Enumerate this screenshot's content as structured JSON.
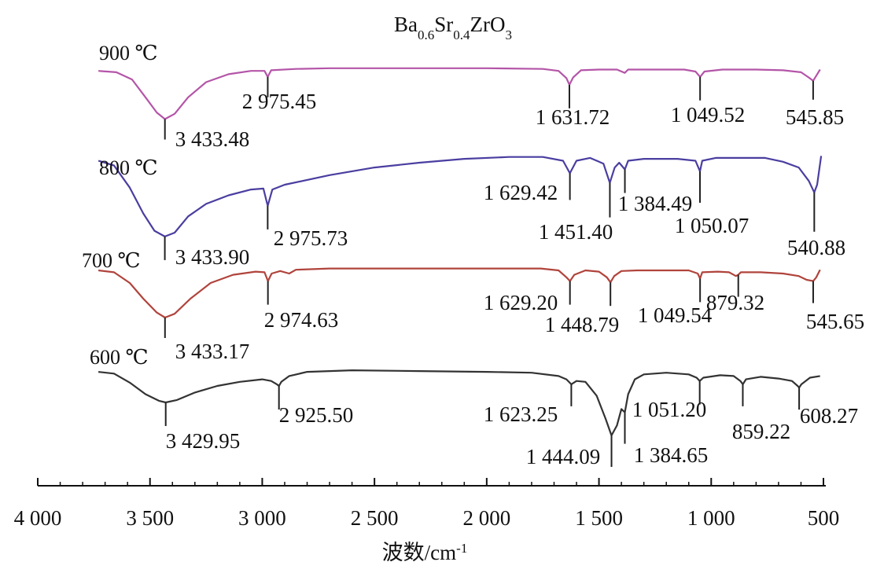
{
  "chart_data": {
    "type": "line",
    "title_base": "Ba",
    "title_parts": [
      {
        "text": "Ba",
        "sub": false
      },
      {
        "text": "0.6",
        "sub": true
      },
      {
        "text": "Sr",
        "sub": false
      },
      {
        "text": "0.4",
        "sub": true
      },
      {
        "text": "ZrO",
        "sub": false
      },
      {
        "text": "3",
        "sub": true
      }
    ],
    "xlabel": "波数/cm",
    "xlabel_sup": "-1",
    "x_reversed": true,
    "xlim": [
      4000,
      500
    ],
    "x_ticks": [
      4000,
      3500,
      3000,
      2500,
      2000,
      1500,
      1000,
      500
    ],
    "x_tick_labels": [
      "4 000",
      "3 500",
      "3 000",
      "2 500",
      "2 000",
      "1 500",
      "1 000",
      "500"
    ],
    "series": [
      {
        "name": "900 ℃",
        "color": "#b455a8",
        "points": [
          [
            3730,
            0.95
          ],
          [
            3650,
            0.93
          ],
          [
            3580,
            0.82
          ],
          [
            3520,
            0.55
          ],
          [
            3470,
            0.32
          ],
          [
            3433.48,
            0.22
          ],
          [
            3390,
            0.3
          ],
          [
            3330,
            0.55
          ],
          [
            3250,
            0.78
          ],
          [
            3150,
            0.9
          ],
          [
            3050,
            0.95
          ],
          [
            2990,
            0.95
          ],
          [
            2975.45,
            0.86
          ],
          [
            2960,
            0.96
          ],
          [
            2850,
            0.98
          ],
          [
            2700,
            0.99
          ],
          [
            2400,
            0.99
          ],
          [
            2000,
            0.99
          ],
          [
            1750,
            0.98
          ],
          [
            1680,
            0.95
          ],
          [
            1645,
            0.84
          ],
          [
            1631.72,
            0.74
          ],
          [
            1615,
            0.85
          ],
          [
            1580,
            0.96
          ],
          [
            1500,
            0.97
          ],
          [
            1420,
            0.97
          ],
          [
            1385,
            0.92
          ],
          [
            1370,
            0.97
          ],
          [
            1250,
            0.97
          ],
          [
            1120,
            0.97
          ],
          [
            1070,
            0.94
          ],
          [
            1049.52,
            0.86
          ],
          [
            1030,
            0.94
          ],
          [
            950,
            0.97
          ],
          [
            800,
            0.97
          ],
          [
            680,
            0.96
          ],
          [
            600,
            0.93
          ],
          [
            565,
            0.85
          ],
          [
            545.85,
            0.8
          ],
          [
            535,
            0.86
          ],
          [
            515,
            0.97
          ]
        ],
        "peaks": [
          {
            "x": 3433.48,
            "label": "3 433.48"
          },
          {
            "x": 2975.45,
            "label": "2 975.45"
          },
          {
            "x": 1631.72,
            "label": "1 631.72"
          },
          {
            "x": 1049.52,
            "label": "1 049.52"
          },
          {
            "x": 545.85,
            "label": "545.85"
          }
        ]
      },
      {
        "name": "800 ℃",
        "color": "#4a3ea0",
        "points": [
          [
            3730,
            0.93
          ],
          [
            3660,
            0.88
          ],
          [
            3590,
            0.65
          ],
          [
            3530,
            0.38
          ],
          [
            3480,
            0.2
          ],
          [
            3433.9,
            0.14
          ],
          [
            3390,
            0.18
          ],
          [
            3330,
            0.35
          ],
          [
            3250,
            0.48
          ],
          [
            3150,
            0.57
          ],
          [
            3050,
            0.63
          ],
          [
            2995,
            0.64
          ],
          [
            2975.73,
            0.46
          ],
          [
            2955,
            0.63
          ],
          [
            2900,
            0.68
          ],
          [
            2700,
            0.78
          ],
          [
            2500,
            0.86
          ],
          [
            2300,
            0.91
          ],
          [
            2100,
            0.95
          ],
          [
            1900,
            0.97
          ],
          [
            1750,
            0.97
          ],
          [
            1660,
            0.93
          ],
          [
            1629.42,
            0.8
          ],
          [
            1600,
            0.93
          ],
          [
            1540,
            0.96
          ],
          [
            1480,
            0.9
          ],
          [
            1451.4,
            0.7
          ],
          [
            1430,
            0.86
          ],
          [
            1410,
            0.91
          ],
          [
            1384.49,
            0.84
          ],
          [
            1370,
            0.93
          ],
          [
            1300,
            0.95
          ],
          [
            1150,
            0.95
          ],
          [
            1070,
            0.93
          ],
          [
            1050.07,
            0.82
          ],
          [
            1040,
            0.93
          ],
          [
            980,
            0.96
          ],
          [
            920,
            0.96
          ],
          [
            850,
            0.96
          ],
          [
            760,
            0.96
          ],
          [
            680,
            0.92
          ],
          [
            610,
            0.86
          ],
          [
            565,
            0.72
          ],
          [
            540.88,
            0.6
          ],
          [
            528,
            0.68
          ],
          [
            510,
            0.98
          ]
        ],
        "peaks": [
          {
            "x": 3433.9,
            "label": "3 433.90"
          },
          {
            "x": 2975.73,
            "label": "2 975.73"
          },
          {
            "x": 1629.42,
            "label": "1 629.42"
          },
          {
            "x": 1451.4,
            "label": "1 451.40"
          },
          {
            "x": 1384.49,
            "label": "1 384.49"
          },
          {
            "x": 1050.07,
            "label": "1 050.07"
          },
          {
            "x": 540.88,
            "label": "540.88"
          }
        ]
      },
      {
        "name": "700 ℃",
        "color": "#b0443c",
        "points": [
          [
            3730,
            0.95
          ],
          [
            3660,
            0.92
          ],
          [
            3590,
            0.75
          ],
          [
            3530,
            0.5
          ],
          [
            3470,
            0.28
          ],
          [
            3433.17,
            0.2
          ],
          [
            3390,
            0.26
          ],
          [
            3320,
            0.5
          ],
          [
            3230,
            0.75
          ],
          [
            3130,
            0.88
          ],
          [
            3030,
            0.93
          ],
          [
            2990,
            0.92
          ],
          [
            2974.63,
            0.78
          ],
          [
            2958,
            0.9
          ],
          [
            2920,
            0.94
          ],
          [
            2880,
            0.9
          ],
          [
            2850,
            0.96
          ],
          [
            2700,
            0.98
          ],
          [
            2400,
            0.98
          ],
          [
            2000,
            0.98
          ],
          [
            1760,
            0.98
          ],
          [
            1680,
            0.95
          ],
          [
            1645,
            0.84
          ],
          [
            1629.2,
            0.78
          ],
          [
            1610,
            0.88
          ],
          [
            1560,
            0.95
          ],
          [
            1500,
            0.93
          ],
          [
            1465,
            0.84
          ],
          [
            1448.79,
            0.76
          ],
          [
            1432,
            0.86
          ],
          [
            1400,
            0.94
          ],
          [
            1330,
            0.95
          ],
          [
            1200,
            0.95
          ],
          [
            1100,
            0.95
          ],
          [
            1060,
            0.9
          ],
          [
            1049.54,
            0.82
          ],
          [
            1040,
            0.92
          ],
          [
            970,
            0.93
          ],
          [
            920,
            0.92
          ],
          [
            890,
            0.86
          ],
          [
            879.32,
            0.88
          ],
          [
            868,
            0.92
          ],
          [
            780,
            0.92
          ],
          [
            680,
            0.9
          ],
          [
            610,
            0.86
          ],
          [
            575,
            0.8
          ],
          [
            545.65,
            0.78
          ],
          [
            532,
            0.84
          ],
          [
            515,
            0.96
          ]
        ],
        "peaks": [
          {
            "x": 3433.17,
            "label": "3 433.17"
          },
          {
            "x": 2974.63,
            "label": "2 974.63"
          },
          {
            "x": 1629.2,
            "label": "1 629.20"
          },
          {
            "x": 1448.79,
            "label": "1 448.79"
          },
          {
            "x": 1049.54,
            "label": "1 049.54"
          },
          {
            "x": 879.32,
            "label": "879.32"
          },
          {
            "x": 545.65,
            "label": "545.65"
          }
        ]
      },
      {
        "name": "600 ℃",
        "color": "#333333",
        "points": [
          [
            3730,
            0.97
          ],
          [
            3660,
            0.95
          ],
          [
            3590,
            0.84
          ],
          [
            3520,
            0.7
          ],
          [
            3460,
            0.62
          ],
          [
            3429.95,
            0.6
          ],
          [
            3380,
            0.63
          ],
          [
            3300,
            0.72
          ],
          [
            3200,
            0.8
          ],
          [
            3100,
            0.85
          ],
          [
            3000,
            0.88
          ],
          [
            2960,
            0.86
          ],
          [
            2935,
            0.82
          ],
          [
            2925.5,
            0.8
          ],
          [
            2915,
            0.85
          ],
          [
            2880,
            0.92
          ],
          [
            2800,
            0.97
          ],
          [
            2600,
            0.99
          ],
          [
            2300,
            0.98
          ],
          [
            2000,
            0.97
          ],
          [
            1800,
            0.96
          ],
          [
            1680,
            0.92
          ],
          [
            1645,
            0.88
          ],
          [
            1623.25,
            0.82
          ],
          [
            1600,
            0.86
          ],
          [
            1560,
            0.85
          ],
          [
            1510,
            0.68
          ],
          [
            1470,
            0.4
          ],
          [
            1444.09,
            0.2
          ],
          [
            1420,
            0.32
          ],
          [
            1400,
            0.52
          ],
          [
            1384.65,
            0.48
          ],
          [
            1370,
            0.7
          ],
          [
            1340,
            0.88
          ],
          [
            1300,
            0.94
          ],
          [
            1200,
            0.96
          ],
          [
            1100,
            0.94
          ],
          [
            1065,
            0.9
          ],
          [
            1051.2,
            0.86
          ],
          [
            1035,
            0.9
          ],
          [
            960,
            0.93
          ],
          [
            900,
            0.92
          ],
          [
            870,
            0.86
          ],
          [
            859.22,
            0.82
          ],
          [
            845,
            0.88
          ],
          [
            780,
            0.91
          ],
          [
            700,
            0.89
          ],
          [
            640,
            0.86
          ],
          [
            615,
            0.8
          ],
          [
            608.27,
            0.78
          ],
          [
            598,
            0.82
          ],
          [
            560,
            0.9
          ],
          [
            515,
            0.92
          ]
        ],
        "peaks": [
          {
            "x": 3429.95,
            "label": "3 429.95"
          },
          {
            "x": 2925.5,
            "label": "2 925.50"
          },
          {
            "x": 1623.25,
            "label": "1 623.25"
          },
          {
            "x": 1444.09,
            "label": "1 444.09"
          },
          {
            "x": 1384.65,
            "label": "1 384.65"
          },
          {
            "x": 1051.2,
            "label": "1 051.20"
          },
          {
            "x": 859.22,
            "label": "859.22"
          },
          {
            "x": 608.27,
            "label": "608.27"
          }
        ]
      }
    ]
  }
}
